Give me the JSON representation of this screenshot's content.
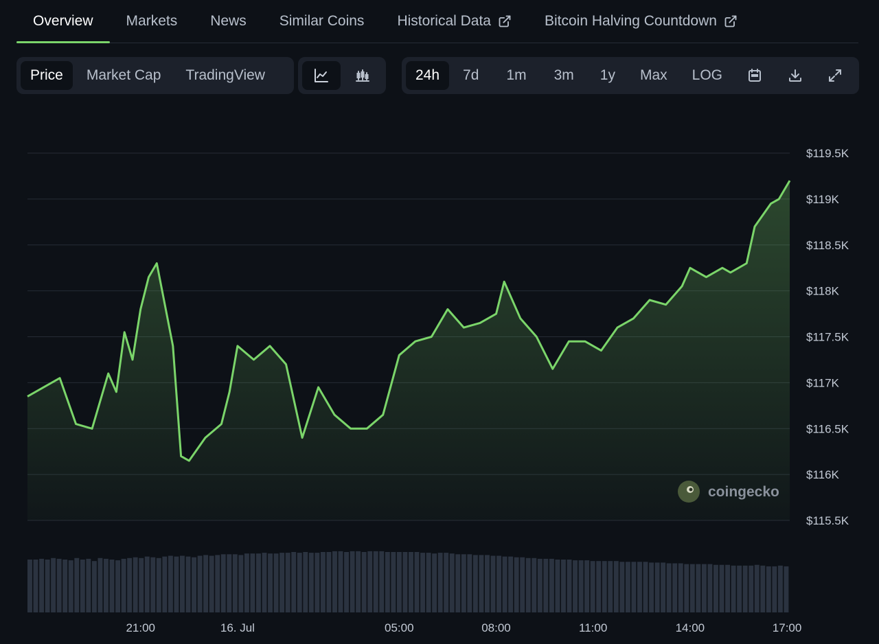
{
  "top_nav": {
    "tabs": [
      {
        "label": "Overview",
        "active": true
      },
      {
        "label": "Markets"
      },
      {
        "label": "News"
      },
      {
        "label": "Similar Coins"
      },
      {
        "label": "Historical Data",
        "external_icon": "external-link-icon"
      },
      {
        "label": "Bitcoin Halving Countdown",
        "external_icon": "external-link-icon"
      }
    ]
  },
  "mode_group": {
    "buttons": [
      "Price",
      "Market Cap",
      "TradingView"
    ],
    "selected": "Price"
  },
  "chart_type_group": {
    "icons": [
      "line-chart-icon",
      "candlestick-chart-icon"
    ],
    "selected": "line-chart-icon"
  },
  "range_group": {
    "buttons": [
      "24h",
      "7d",
      "1m",
      "3m",
      "1y",
      "Max",
      "LOG"
    ],
    "selected": "24h",
    "icons": [
      "calendar-icon",
      "download-icon",
      "fullscreen-icon"
    ]
  },
  "watermark": "coingecko",
  "colors": {
    "line": "#7bd56a",
    "accent": "#7bd56a",
    "background": "#0d1117",
    "grid": "#262c36",
    "volume": "#2b3340"
  },
  "chart_data": {
    "type": "line",
    "title": "",
    "xlabel": "",
    "ylabel": "",
    "x_ticks": [
      "21:00",
      "16. Jul",
      "05:00",
      "08:00",
      "11:00",
      "14:00",
      "17:00"
    ],
    "y_ticks": [
      "$119.5K",
      "$119K",
      "$118.5K",
      "$118K",
      "$117.5K",
      "$117K",
      "$116.5K",
      "$116K",
      "$115.5K"
    ],
    "ylim": [
      115500,
      119500
    ],
    "xlim": [
      "15 Jul 17:30",
      "16 Jul 17:05"
    ],
    "grid": true,
    "series": [
      {
        "x": [
          "15 Jul 17:30",
          "15 Jul 18:00",
          "15 Jul 18:30",
          "15 Jul 19:00",
          "15 Jul 19:30",
          "15 Jul 20:00",
          "15 Jul 20:15",
          "15 Jul 20:30",
          "15 Jul 20:45",
          "15 Jul 21:00",
          "15 Jul 21:15",
          "15 Jul 21:30",
          "15 Jul 22:00",
          "15 Jul 22:15",
          "15 Jul 22:30",
          "15 Jul 23:00",
          "15 Jul 23:30",
          "15 Jul 23:45",
          "16 Jul 00:00",
          "16 Jul 00:30",
          "16 Jul 01:00",
          "16 Jul 01:30",
          "16 Jul 02:00",
          "16 Jul 02:30",
          "16 Jul 03:00",
          "16 Jul 03:30",
          "16 Jul 04:00",
          "16 Jul 04:30",
          "16 Jul 05:00",
          "16 Jul 05:30",
          "16 Jul 06:00",
          "16 Jul 06:30",
          "16 Jul 07:00",
          "16 Jul 07:30",
          "16 Jul 08:00",
          "16 Jul 08:15",
          "16 Jul 08:45",
          "16 Jul 09:15",
          "16 Jul 09:45",
          "16 Jul 10:15",
          "16 Jul 10:45",
          "16 Jul 11:15",
          "16 Jul 11:45",
          "16 Jul 12:15",
          "16 Jul 12:45",
          "16 Jul 13:15",
          "16 Jul 13:45",
          "16 Jul 14:00",
          "16 Jul 14:30",
          "16 Jul 15:00",
          "16 Jul 15:15",
          "16 Jul 15:45",
          "16 Jul 16:00",
          "16 Jul 16:30",
          "16 Jul 16:45",
          "16 Jul 17:05"
        ],
        "values": [
          116850,
          116950,
          117050,
          116550,
          116500,
          117100,
          116900,
          117550,
          117250,
          117800,
          118150,
          118300,
          117400,
          116200,
          116150,
          116400,
          116550,
          116900,
          117400,
          117250,
          117400,
          117200,
          116400,
          116950,
          116650,
          116500,
          116500,
          116650,
          117300,
          117450,
          117500,
          117800,
          117600,
          117650,
          117750,
          118100,
          117700,
          117500,
          117150,
          117450,
          117450,
          117350,
          117600,
          117700,
          117900,
          117850,
          118050,
          118250,
          118150,
          118250,
          118200,
          118300,
          118700,
          118950,
          119000,
          119200
        ]
      }
    ],
    "volume": [
      70,
      70,
      71,
      70,
      72,
      71,
      70,
      69,
      72,
      70,
      71,
      68,
      72,
      71,
      70,
      69,
      71,
      72,
      73,
      72,
      74,
      73,
      72,
      74,
      75,
      74,
      75,
      74,
      73,
      75,
      76,
      75,
      76,
      77,
      77,
      77,
      76,
      78,
      78,
      78,
      79,
      78,
      78,
      79,
      79,
      80,
      79,
      80,
      79,
      79,
      80,
      80,
      81,
      81,
      80,
      81,
      81,
      80,
      81,
      81,
      81,
      80,
      80,
      80,
      80,
      80,
      80,
      79,
      79,
      78,
      79,
      79,
      78,
      77,
      77,
      77,
      76,
      76,
      76,
      75,
      75,
      74,
      74,
      73,
      73,
      72,
      72,
      71,
      71,
      71,
      70,
      70,
      70,
      69,
      69,
      69,
      68,
      68,
      68,
      68,
      68,
      67,
      67,
      67,
      67,
      67,
      66,
      66,
      66,
      65,
      65,
      65,
      64,
      64,
      64,
      64,
      64,
      63,
      63,
      63,
      62,
      62,
      62,
      62,
      63,
      62,
      61,
      61,
      62,
      61
    ]
  }
}
